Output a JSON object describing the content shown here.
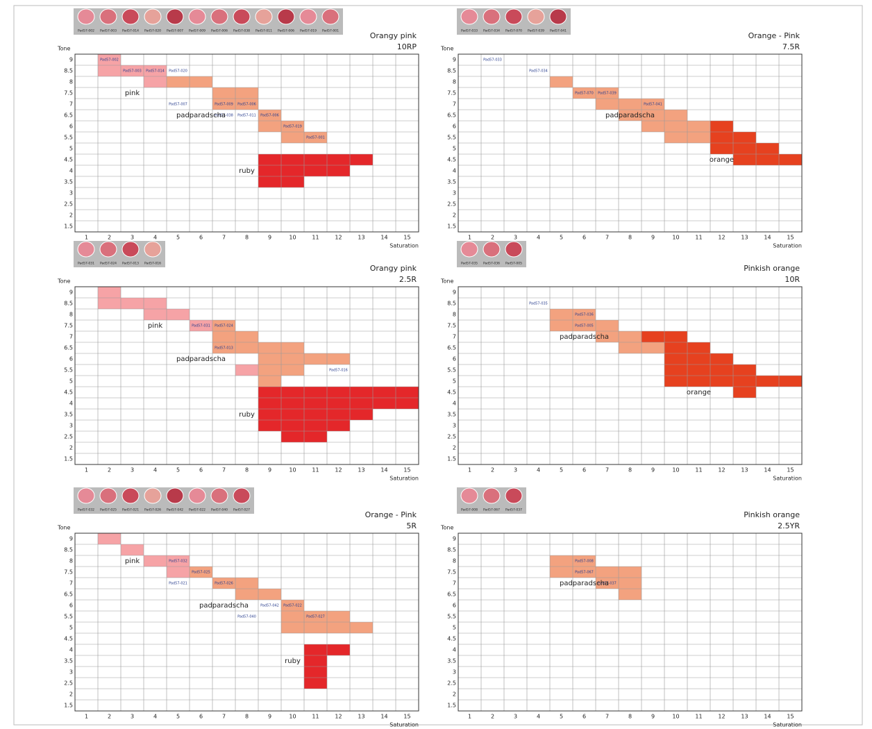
{
  "colors": {
    "p": "#f6a3a6",
    "s": "#f3a27f",
    "r": "#e4272a",
    "o": "#e6411f"
  },
  "panels": [
    {
      "hue_name": "Orangy pink",
      "hue_code": "10RP",
      "tone_title": "Tone",
      "sat_title": "Saturation",
      "samples": [
        "Pad57-002",
        "Pad57-003",
        "Pad57-014",
        "Pad57-020",
        "Pad57-007",
        "Pad57-009",
        "Pad57-006",
        "Pad57-038",
        "Pad57-011",
        "Pad57-006",
        "Pad57-019",
        "Pad57-001"
      ],
      "tones": [
        9,
        8.5,
        8,
        7.5,
        7,
        6.5,
        6,
        5.5,
        5,
        4.5,
        4,
        3.5,
        3,
        2.5,
        2,
        1.5
      ],
      "sats": [
        1,
        2,
        3,
        4,
        5,
        6,
        7,
        8,
        9,
        10,
        11,
        12,
        13,
        14,
        15
      ],
      "regions": [
        {
          "text": "pink",
          "sat": 3,
          "tone": 7.5
        },
        {
          "text": "padparadscha",
          "sat": 6,
          "tone": 6.5
        },
        {
          "text": "ruby",
          "sat": 8,
          "tone": 4
        }
      ],
      "cells": [
        [
          2,
          9,
          "p"
        ],
        [
          2,
          8.5,
          "p"
        ],
        [
          3,
          8.5,
          "p"
        ],
        [
          4,
          8.5,
          "p"
        ],
        [
          4,
          8,
          "p"
        ],
        [
          5,
          8,
          "s"
        ],
        [
          6,
          8,
          "s"
        ],
        [
          7,
          7.5,
          "s"
        ],
        [
          8,
          7.5,
          "s"
        ],
        [
          7,
          7,
          "s"
        ],
        [
          8,
          7,
          "s"
        ],
        [
          9,
          6.5,
          "s"
        ],
        [
          9,
          6,
          "s"
        ],
        [
          10,
          6,
          "s"
        ],
        [
          10,
          5.5,
          "s"
        ],
        [
          11,
          5.5,
          "s"
        ],
        [
          9,
          4.5,
          "r"
        ],
        [
          10,
          4.5,
          "r"
        ],
        [
          11,
          4.5,
          "r"
        ],
        [
          12,
          4.5,
          "r"
        ],
        [
          13,
          4.5,
          "r"
        ],
        [
          9,
          4,
          "r"
        ],
        [
          10,
          4,
          "r"
        ],
        [
          11,
          4,
          "r"
        ],
        [
          12,
          4,
          "r"
        ],
        [
          9,
          3.5,
          "r"
        ],
        [
          10,
          3.5,
          "r"
        ]
      ],
      "cell_labels": [
        {
          "sat": 2,
          "tone": 9,
          "text": "Pad57-002"
        },
        {
          "sat": 3,
          "tone": 8.5,
          "text": "Pad57-003"
        },
        {
          "sat": 4,
          "tone": 8.5,
          "text": "Pad57-014"
        },
        {
          "sat": 5,
          "tone": 8.5,
          "text": "Pad57-020"
        },
        {
          "sat": 5,
          "tone": 7,
          "text": "Pad57-007"
        },
        {
          "sat": 7,
          "tone": 7,
          "text": "Pad57-009"
        },
        {
          "sat": 8,
          "tone": 7,
          "text": "Pad57-006"
        },
        {
          "sat": 7,
          "tone": 6.5,
          "text": "Pad57-038"
        },
        {
          "sat": 8,
          "tone": 6.5,
          "text": "Pad57-011"
        },
        {
          "sat": 9,
          "tone": 6.5,
          "text": "Pad57-006"
        },
        {
          "sat": 10,
          "tone": 6,
          "text": "Pad57-019"
        },
        {
          "sat": 11,
          "tone": 5.5,
          "text": "Pad57-001"
        }
      ]
    },
    {
      "hue_name": "Orange -  Pink",
      "hue_code": "7.5R",
      "tone_title": "Tone",
      "sat_title": "Saturation",
      "samples": [
        "Pad57-033",
        "Pad57-034",
        "Pad57-070",
        "Pad57-039",
        "Pad57-041"
      ],
      "tones": [
        9,
        8.5,
        8,
        7.5,
        7,
        6.5,
        6,
        5.5,
        5,
        4.5,
        4,
        3.5,
        3,
        2.5,
        2,
        1.5
      ],
      "sats": [
        1,
        2,
        3,
        4,
        5,
        6,
        7,
        8,
        9,
        10,
        11,
        12,
        13,
        14,
        15
      ],
      "regions": [
        {
          "text": "padparadscha",
          "sat": 8,
          "tone": 6.5
        },
        {
          "text": "orange",
          "sat": 12,
          "tone": 4.5
        }
      ],
      "cells": [
        [
          5,
          8,
          "s"
        ],
        [
          6,
          7.5,
          "s"
        ],
        [
          7,
          7.5,
          "s"
        ],
        [
          7,
          7,
          "s"
        ],
        [
          8,
          7,
          "s"
        ],
        [
          9,
          7,
          "s"
        ],
        [
          8,
          6.5,
          "s"
        ],
        [
          9,
          6.5,
          "s"
        ],
        [
          10,
          6.5,
          "s"
        ],
        [
          9,
          6,
          "s"
        ],
        [
          10,
          6,
          "s"
        ],
        [
          11,
          6,
          "s"
        ],
        [
          12,
          6,
          "o"
        ],
        [
          10,
          5.5,
          "s"
        ],
        [
          11,
          5.5,
          "s"
        ],
        [
          12,
          5.5,
          "o"
        ],
        [
          13,
          5.5,
          "o"
        ],
        [
          12,
          5,
          "o"
        ],
        [
          13,
          5,
          "o"
        ],
        [
          14,
          5,
          "o"
        ],
        [
          13,
          4.5,
          "o"
        ],
        [
          14,
          4.5,
          "o"
        ],
        [
          15,
          4.5,
          "o"
        ]
      ],
      "cell_labels": [
        {
          "sat": 2,
          "tone": 9,
          "text": "Pad57-033"
        },
        {
          "sat": 4,
          "tone": 8.5,
          "text": "Pad57-034"
        },
        {
          "sat": 6,
          "tone": 7.5,
          "text": "Pad57-070"
        },
        {
          "sat": 7,
          "tone": 7.5,
          "text": "Pad57-039"
        },
        {
          "sat": 9,
          "tone": 7,
          "text": "Pad57-041"
        }
      ]
    },
    {
      "hue_name": "Orangy pink",
      "hue_code": "2.5R",
      "tone_title": "Tone",
      "sat_title": "Saturation",
      "samples": [
        "Pad57-031",
        "Pad57-024",
        "Pad57-013",
        "Pad57-016"
      ],
      "tones": [
        9,
        8.5,
        8,
        7.5,
        7,
        6.5,
        6,
        5.5,
        5,
        4.5,
        4,
        3.5,
        3,
        2.5,
        2,
        1.5
      ],
      "sats": [
        1,
        2,
        3,
        4,
        5,
        6,
        7,
        8,
        9,
        10,
        11,
        12,
        13,
        14,
        15
      ],
      "regions": [
        {
          "text": "pink",
          "sat": 4,
          "tone": 7.5
        },
        {
          "text": "padparadscha",
          "sat": 6,
          "tone": 6
        },
        {
          "text": "ruby",
          "sat": 8,
          "tone": 3.5
        }
      ],
      "cells": [
        [
          2,
          9,
          "p"
        ],
        [
          2,
          8.5,
          "p"
        ],
        [
          3,
          8.5,
          "p"
        ],
        [
          4,
          8.5,
          "p"
        ],
        [
          4,
          8,
          "p"
        ],
        [
          5,
          8,
          "p"
        ],
        [
          6,
          7.5,
          "p"
        ],
        [
          7,
          7.5,
          "s"
        ],
        [
          7,
          7,
          "s"
        ],
        [
          8,
          7,
          "s"
        ],
        [
          7,
          6.5,
          "s"
        ],
        [
          8,
          6.5,
          "s"
        ],
        [
          9,
          6.5,
          "s"
        ],
        [
          10,
          6.5,
          "s"
        ],
        [
          9,
          6,
          "s"
        ],
        [
          10,
          6,
          "s"
        ],
        [
          11,
          6,
          "s"
        ],
        [
          12,
          6,
          "s"
        ],
        [
          8,
          5.5,
          "p"
        ],
        [
          9,
          5.5,
          "s"
        ],
        [
          10,
          5.5,
          "s"
        ],
        [
          9,
          5,
          "s"
        ],
        [
          9,
          4.5,
          "r"
        ],
        [
          10,
          4.5,
          "r"
        ],
        [
          11,
          4.5,
          "r"
        ],
        [
          12,
          4.5,
          "r"
        ],
        [
          13,
          4.5,
          "r"
        ],
        [
          14,
          4.5,
          "r"
        ],
        [
          15,
          4.5,
          "r"
        ],
        [
          9,
          4,
          "r"
        ],
        [
          10,
          4,
          "r"
        ],
        [
          11,
          4,
          "r"
        ],
        [
          12,
          4,
          "r"
        ],
        [
          13,
          4,
          "r"
        ],
        [
          14,
          4,
          "r"
        ],
        [
          15,
          4,
          "r"
        ],
        [
          9,
          3.5,
          "r"
        ],
        [
          10,
          3.5,
          "r"
        ],
        [
          11,
          3.5,
          "r"
        ],
        [
          12,
          3.5,
          "r"
        ],
        [
          13,
          3.5,
          "r"
        ],
        [
          9,
          3,
          "r"
        ],
        [
          10,
          3,
          "r"
        ],
        [
          11,
          3,
          "r"
        ],
        [
          12,
          3,
          "r"
        ],
        [
          10,
          2.5,
          "r"
        ],
        [
          11,
          2.5,
          "r"
        ]
      ],
      "cell_labels": [
        {
          "sat": 6,
          "tone": 7.5,
          "text": "Pad57-031"
        },
        {
          "sat": 7,
          "tone": 7.5,
          "text": "Pad57-024"
        },
        {
          "sat": 7,
          "tone": 6.5,
          "text": "Pad57-013"
        },
        {
          "sat": 12,
          "tone": 5.5,
          "text": "Pad57-016"
        }
      ]
    },
    {
      "hue_name": "Pinkish orange",
      "hue_code": "10R",
      "tone_title": "Tone",
      "sat_title": "Saturation",
      "samples": [
        "Pad57-035",
        "Pad57-036",
        "Pad57-005"
      ],
      "tones": [
        9,
        8.5,
        8,
        7.5,
        7,
        6.5,
        6,
        5.5,
        5,
        4.5,
        4,
        3.5,
        3,
        2.5,
        2,
        1.5
      ],
      "sats": [
        1,
        2,
        3,
        4,
        5,
        6,
        7,
        8,
        9,
        10,
        11,
        12,
        13,
        14,
        15
      ],
      "regions": [
        {
          "text": "padparadscha",
          "sat": 6,
          "tone": 7
        },
        {
          "text": "orange",
          "sat": 11,
          "tone": 4.5
        }
      ],
      "cells": [
        [
          5,
          8,
          "s"
        ],
        [
          6,
          8,
          "s"
        ],
        [
          5,
          7.5,
          "s"
        ],
        [
          6,
          7.5,
          "s"
        ],
        [
          7,
          7.5,
          "s"
        ],
        [
          7,
          7,
          "s"
        ],
        [
          8,
          7,
          "s"
        ],
        [
          9,
          7,
          "o"
        ],
        [
          10,
          7,
          "o"
        ],
        [
          8,
          6.5,
          "s"
        ],
        [
          9,
          6.5,
          "s"
        ],
        [
          10,
          6.5,
          "o"
        ],
        [
          11,
          6.5,
          "o"
        ],
        [
          10,
          6,
          "o"
        ],
        [
          11,
          6,
          "o"
        ],
        [
          12,
          6,
          "o"
        ],
        [
          10,
          5.5,
          "o"
        ],
        [
          11,
          5.5,
          "o"
        ],
        [
          12,
          5.5,
          "o"
        ],
        [
          13,
          5.5,
          "o"
        ],
        [
          10,
          5,
          "o"
        ],
        [
          11,
          5,
          "o"
        ],
        [
          12,
          5,
          "o"
        ],
        [
          13,
          5,
          "o"
        ],
        [
          14,
          5,
          "o"
        ],
        [
          15,
          5,
          "o"
        ],
        [
          13,
          4.5,
          "o"
        ]
      ],
      "cell_labels": [
        {
          "sat": 4,
          "tone": 8.5,
          "text": "Pad57-035"
        },
        {
          "sat": 6,
          "tone": 8,
          "text": "Pad57-036"
        },
        {
          "sat": 6,
          "tone": 7.5,
          "text": "Pad57-005"
        }
      ]
    },
    {
      "hue_name": "Orange -  Pink",
      "hue_code": "5R",
      "tone_title": "Tone",
      "sat_title": "Saturation",
      "samples": [
        "Pad57-032",
        "Pad57-025",
        "Pad57-021",
        "Pad57-026",
        "Pad57-042",
        "Pad57-022",
        "Pad57-040",
        "Pad57-027"
      ],
      "tones": [
        9,
        8.5,
        8,
        7.5,
        7,
        6.5,
        6,
        5.5,
        5,
        4.5,
        4,
        3.5,
        3,
        2.5,
        2,
        1.5
      ],
      "sats": [
        1,
        2,
        3,
        4,
        5,
        6,
        7,
        8,
        9,
        10,
        11,
        12,
        13,
        14,
        15
      ],
      "regions": [
        {
          "text": "pink",
          "sat": 3,
          "tone": 8
        },
        {
          "text": "padparadscha",
          "sat": 7,
          "tone": 6
        },
        {
          "text": "ruby",
          "sat": 10,
          "tone": 3.5
        }
      ],
      "cells": [
        [
          2,
          9,
          "p"
        ],
        [
          3,
          8.5,
          "p"
        ],
        [
          4,
          8,
          "p"
        ],
        [
          5,
          8,
          "p"
        ],
        [
          5,
          7.5,
          "p"
        ],
        [
          6,
          7.5,
          "s"
        ],
        [
          7,
          7,
          "s"
        ],
        [
          8,
          7,
          "s"
        ],
        [
          8,
          6.5,
          "s"
        ],
        [
          9,
          6.5,
          "s"
        ],
        [
          10,
          6,
          "s"
        ],
        [
          10,
          5.5,
          "s"
        ],
        [
          11,
          5.5,
          "s"
        ],
        [
          12,
          5.5,
          "s"
        ],
        [
          10,
          5,
          "s"
        ],
        [
          11,
          5,
          "s"
        ],
        [
          12,
          5,
          "s"
        ],
        [
          13,
          5,
          "s"
        ],
        [
          11,
          4,
          "r"
        ],
        [
          12,
          4,
          "r"
        ],
        [
          11,
          3.5,
          "r"
        ],
        [
          11,
          3,
          "r"
        ],
        [
          11,
          2.5,
          "r"
        ]
      ],
      "cell_labels": [
        {
          "sat": 5,
          "tone": 8,
          "text": "Pad57-032"
        },
        {
          "sat": 6,
          "tone": 7.5,
          "text": "Pad57-025"
        },
        {
          "sat": 5,
          "tone": 7,
          "text": "Pad57-021"
        },
        {
          "sat": 7,
          "tone": 7,
          "text": "Pad57-026"
        },
        {
          "sat": 9,
          "tone": 6,
          "text": "Pad57-042"
        },
        {
          "sat": 8,
          "tone": 5.5,
          "text": "Pad57-040"
        },
        {
          "sat": 10,
          "tone": 6,
          "text": "Pad57-022"
        },
        {
          "sat": 11,
          "tone": 5.5,
          "text": "Pad57-027"
        }
      ]
    },
    {
      "hue_name": "Pinkish orange",
      "hue_code": "2.5YR",
      "tone_title": "Tone",
      "sat_title": "Saturation",
      "samples": [
        "Pad57-008",
        "Pad57-067",
        "Pad57-037"
      ],
      "tones": [
        9,
        8.5,
        8,
        7.5,
        7,
        6.5,
        6,
        5.5,
        5,
        4.5,
        4,
        3.5,
        3,
        2.5,
        2,
        1.5
      ],
      "sats": [
        1,
        2,
        3,
        4,
        5,
        6,
        7,
        8,
        9,
        10,
        11,
        12,
        13,
        14,
        15
      ],
      "regions": [
        {
          "text": "padparadscha",
          "sat": 6,
          "tone": 7
        }
      ],
      "cells": [
        [
          5,
          8,
          "s"
        ],
        [
          6,
          8,
          "s"
        ],
        [
          5,
          7.5,
          "s"
        ],
        [
          6,
          7.5,
          "s"
        ],
        [
          7,
          7.5,
          "s"
        ],
        [
          8,
          7.5,
          "s"
        ],
        [
          7,
          7,
          "s"
        ],
        [
          8,
          7,
          "s"
        ],
        [
          8,
          6.5,
          "s"
        ]
      ],
      "cell_labels": [
        {
          "sat": 6,
          "tone": 8,
          "text": "Pad57-008"
        },
        {
          "sat": 6,
          "tone": 7.5,
          "text": "Pad57-067"
        },
        {
          "sat": 7,
          "tone": 7,
          "text": "Pad57-037"
        }
      ]
    }
  ]
}
